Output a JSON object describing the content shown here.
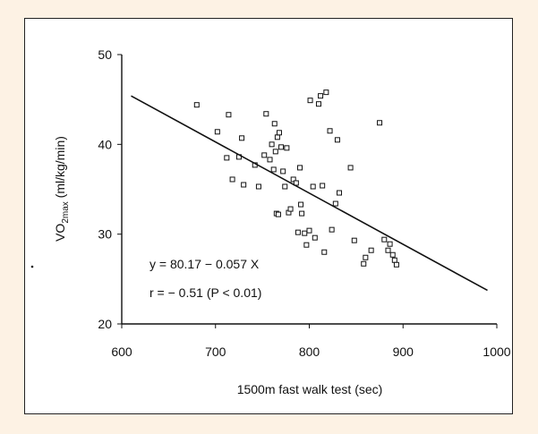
{
  "figure": {
    "background_color": "#fdf2e4",
    "panel_color": "#ffffff"
  },
  "chart_data": {
    "type": "scatter",
    "title": "",
    "xlabel": "1500m fast walk test (sec)",
    "ylabel_parts": {
      "main": "VO",
      "sub": "2max",
      "units": " (ml/kg/min)"
    },
    "xlim": [
      600,
      1000
    ],
    "ylim": [
      20,
      50
    ],
    "xticks": [
      "600",
      "700",
      "800",
      "900",
      "1000"
    ],
    "yticks": [
      "20",
      "30",
      "40",
      "50"
    ],
    "grid": false,
    "marker": "hollow-square",
    "points": [
      {
        "x": 680,
        "y": 44.4
      },
      {
        "x": 702,
        "y": 41.4
      },
      {
        "x": 712,
        "y": 38.5
      },
      {
        "x": 714,
        "y": 43.3
      },
      {
        "x": 718,
        "y": 36.1
      },
      {
        "x": 725,
        "y": 38.6
      },
      {
        "x": 728,
        "y": 40.7
      },
      {
        "x": 730,
        "y": 35.5
      },
      {
        "x": 742,
        "y": 37.7
      },
      {
        "x": 746,
        "y": 35.3
      },
      {
        "x": 752,
        "y": 38.8
      },
      {
        "x": 754,
        "y": 43.4
      },
      {
        "x": 758,
        "y": 38.3
      },
      {
        "x": 760,
        "y": 40.0
      },
      {
        "x": 762,
        "y": 37.2
      },
      {
        "x": 763,
        "y": 42.3
      },
      {
        "x": 764,
        "y": 39.2
      },
      {
        "x": 765,
        "y": 32.3
      },
      {
        "x": 766,
        "y": 40.8
      },
      {
        "x": 767,
        "y": 32.2
      },
      {
        "x": 768,
        "y": 41.3
      },
      {
        "x": 770,
        "y": 39.7
      },
      {
        "x": 772,
        "y": 37.0
      },
      {
        "x": 774,
        "y": 35.3
      },
      {
        "x": 776,
        "y": 39.6
      },
      {
        "x": 778,
        "y": 32.4
      },
      {
        "x": 780,
        "y": 32.8
      },
      {
        "x": 783,
        "y": 36.1
      },
      {
        "x": 786,
        "y": 35.7
      },
      {
        "x": 788,
        "y": 30.2
      },
      {
        "x": 790,
        "y": 37.4
      },
      {
        "x": 791,
        "y": 33.3
      },
      {
        "x": 792,
        "y": 32.3
      },
      {
        "x": 795,
        "y": 30.1
      },
      {
        "x": 797,
        "y": 28.8
      },
      {
        "x": 800,
        "y": 30.4
      },
      {
        "x": 801,
        "y": 44.9
      },
      {
        "x": 804,
        "y": 35.3
      },
      {
        "x": 806,
        "y": 29.6
      },
      {
        "x": 810,
        "y": 44.5
      },
      {
        "x": 812,
        "y": 45.4
      },
      {
        "x": 814,
        "y": 35.4
      },
      {
        "x": 816,
        "y": 28.0
      },
      {
        "x": 818,
        "y": 45.8
      },
      {
        "x": 822,
        "y": 41.5
      },
      {
        "x": 824,
        "y": 30.5
      },
      {
        "x": 828,
        "y": 33.4
      },
      {
        "x": 830,
        "y": 40.5
      },
      {
        "x": 832,
        "y": 34.6
      },
      {
        "x": 844,
        "y": 37.4
      },
      {
        "x": 848,
        "y": 29.3
      },
      {
        "x": 858,
        "y": 26.7
      },
      {
        "x": 860,
        "y": 27.4
      },
      {
        "x": 866,
        "y": 28.2
      },
      {
        "x": 875,
        "y": 42.4
      },
      {
        "x": 880,
        "y": 29.4
      },
      {
        "x": 884,
        "y": 28.2
      },
      {
        "x": 886,
        "y": 28.9
      },
      {
        "x": 889,
        "y": 27.7
      },
      {
        "x": 891,
        "y": 27.1
      },
      {
        "x": 893,
        "y": 26.6
      }
    ],
    "regression": {
      "slope": -0.057,
      "intercept": 80.17,
      "x_range": [
        610,
        990
      ]
    },
    "annotations": [
      "y = 80.17 − 0.057 X",
      "r = − 0.51 (P < 0.01)"
    ]
  }
}
